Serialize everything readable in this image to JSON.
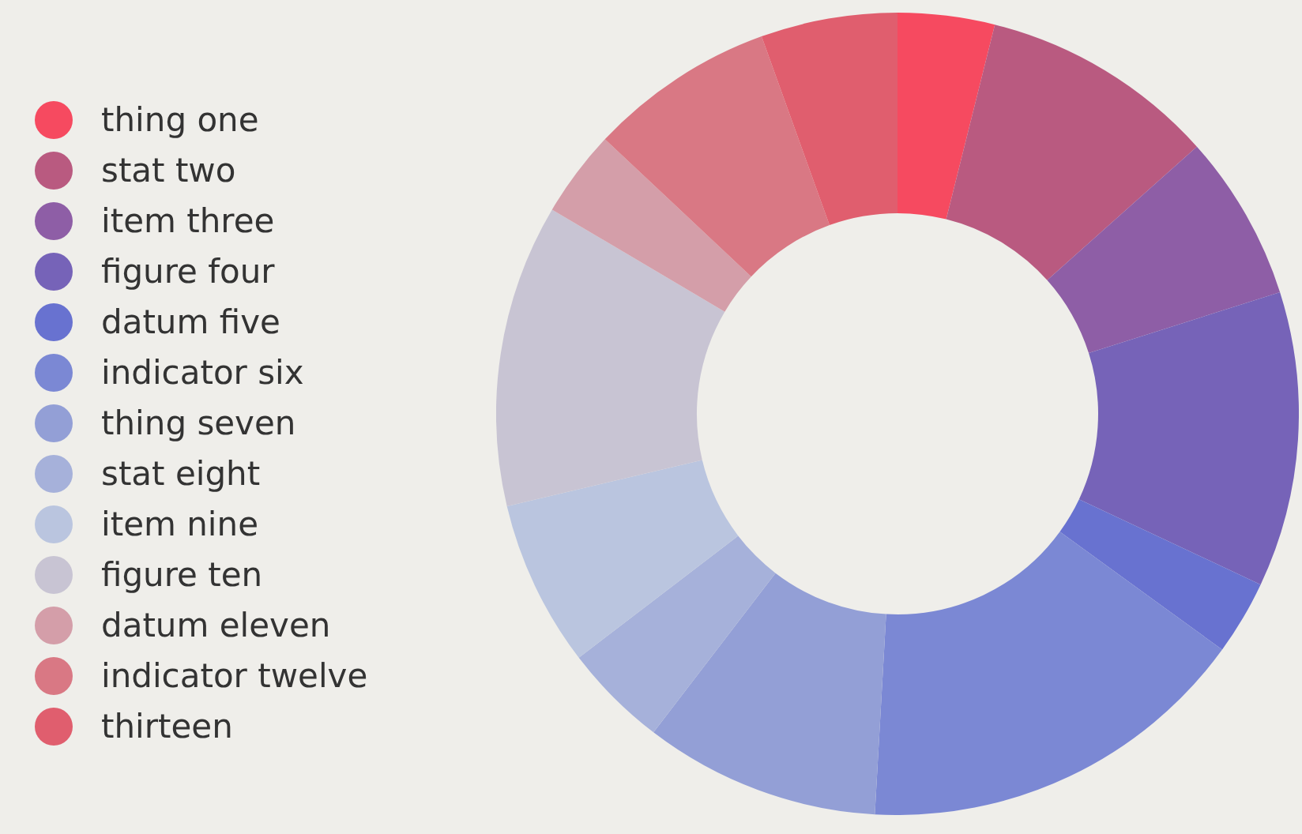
{
  "chart_data": {
    "type": "donut",
    "categories": [
      "thing one",
      "stat two",
      "item three",
      "figure four",
      "datum five",
      "indicator six",
      "thing seven",
      "stat eight",
      "item nine",
      "figure ten",
      "datum eleven",
      "indicator twelve",
      "thirteen"
    ],
    "values": [
      3.9,
      9.5,
      6.7,
      11.9,
      3.0,
      15.9,
      9.5,
      4.2,
      6.7,
      12.2,
      3.5,
      7.5,
      5.5
    ],
    "colors": [
      "#f64a60",
      "#b95a80",
      "#8e5ea6",
      "#7663b8",
      "#6872d0",
      "#7b88d4",
      "#939fd6",
      "#a6b1da",
      "#bac5df",
      "#c8c4d3",
      "#d49ea9",
      "#d97884",
      "#e05e6e"
    ],
    "legend": "left"
  }
}
